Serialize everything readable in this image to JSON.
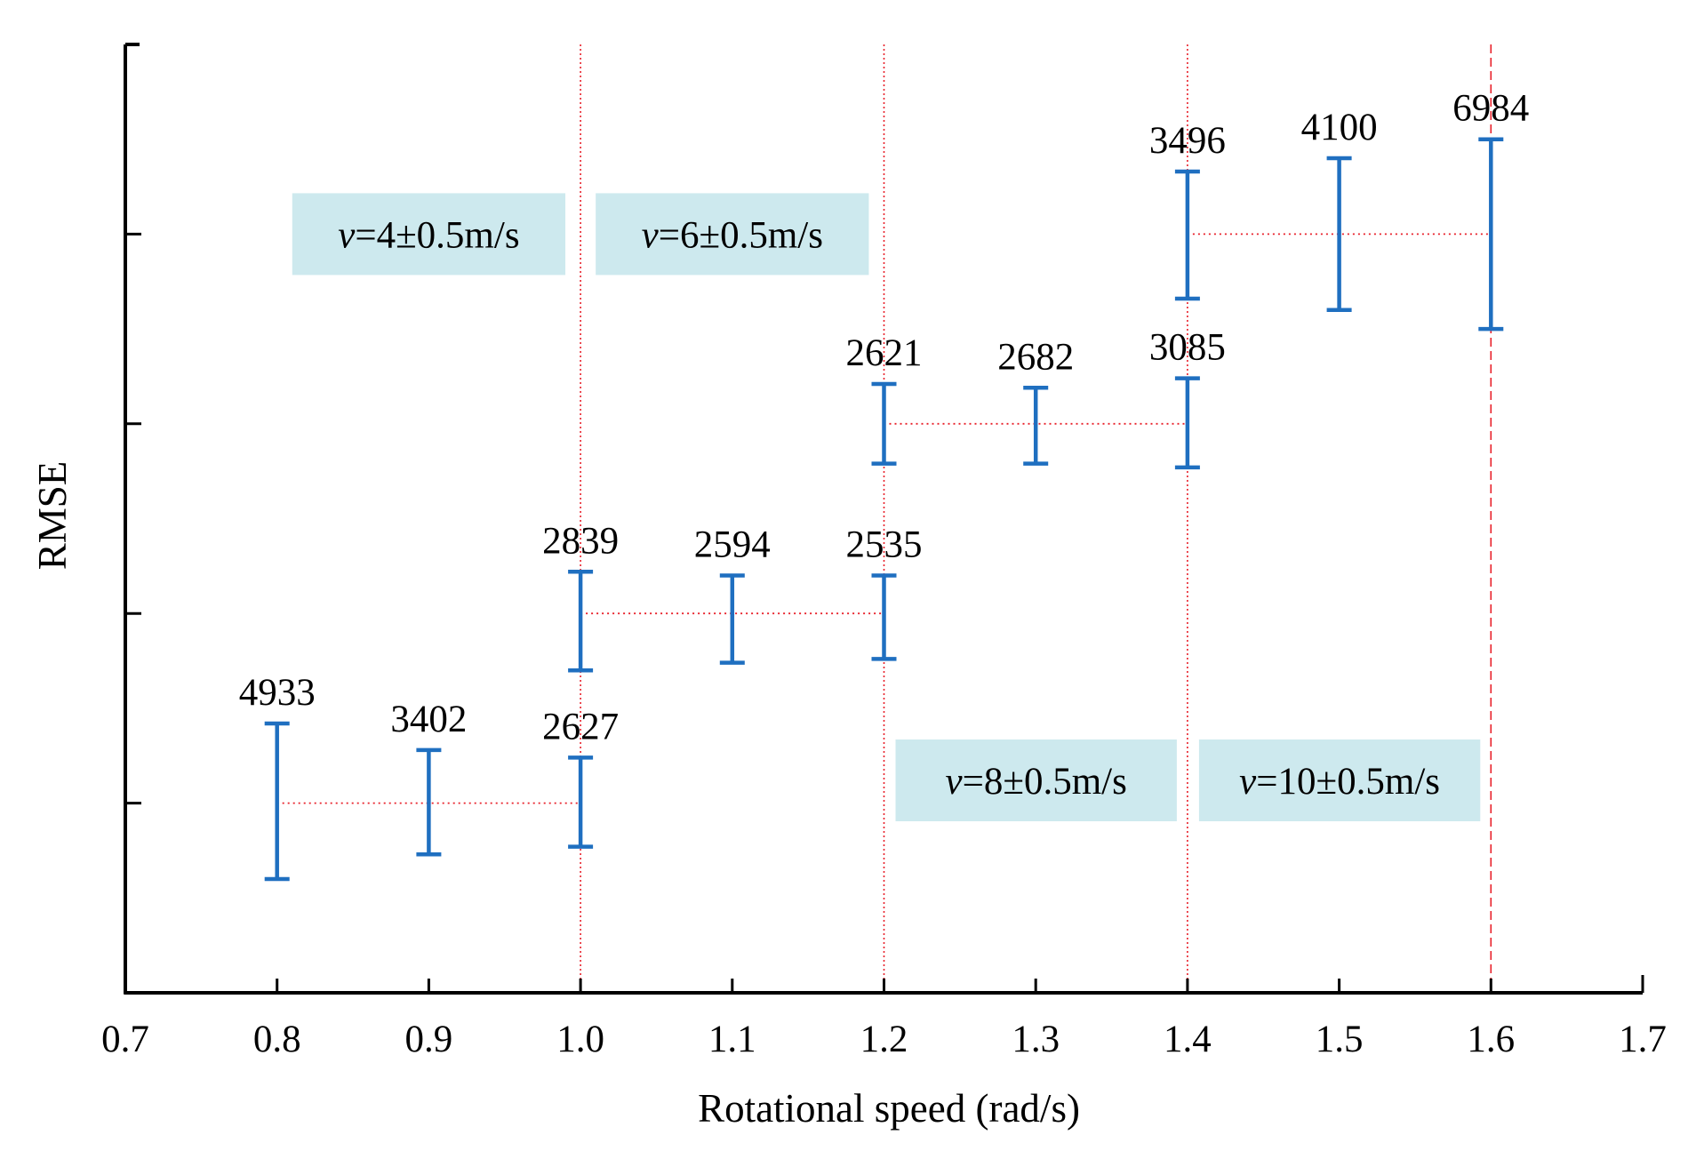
{
  "chart_data": {
    "type": "errorbar",
    "xlabel": "Rotational speed (rad/s)",
    "ylabel": "RMSE",
    "xlim": [
      0.7,
      1.7
    ],
    "x_ticks": [
      "0.7",
      "0.8",
      "0.9",
      "1.0",
      "1.1",
      "1.2",
      "1.3",
      "1.4",
      "1.5",
      "1.6",
      "1.7"
    ],
    "ylim": [
      0,
      5
    ],
    "y_ticks": [
      1,
      2,
      3,
      4
    ],
    "y_tick_labels_shown": false,
    "vertical_reference_lines": [
      1.0,
      1.2,
      1.4,
      1.6
    ],
    "series": [
      {
        "name": "v=4±0.5m/s",
        "y_level": 1,
        "points": [
          {
            "x": 0.8,
            "low": 0.6,
            "high": 1.42,
            "label": "4933"
          },
          {
            "x": 0.9,
            "low": 0.73,
            "high": 1.28,
            "label": "3402"
          },
          {
            "x": 1.0,
            "low": 0.77,
            "high": 1.24,
            "label": "2627"
          }
        ]
      },
      {
        "name": "v=6±0.5m/s",
        "y_level": 2,
        "points": [
          {
            "x": 1.0,
            "low": 1.7,
            "high": 2.22,
            "label": "2839"
          },
          {
            "x": 1.1,
            "low": 1.74,
            "high": 2.2,
            "label": "2594"
          },
          {
            "x": 1.2,
            "low": 1.76,
            "high": 2.2,
            "label": "2535"
          }
        ]
      },
      {
        "name": "v=8±0.5m/s",
        "y_level": 3,
        "points": [
          {
            "x": 1.2,
            "low": 2.79,
            "high": 3.21,
            "label": "2621"
          },
          {
            "x": 1.3,
            "low": 2.79,
            "high": 3.19,
            "label": "2682"
          },
          {
            "x": 1.4,
            "low": 2.77,
            "high": 3.24,
            "label": "3085"
          }
        ]
      },
      {
        "name": "v=10±0.5m/s",
        "y_level": 4,
        "points": [
          {
            "x": 1.4,
            "low": 3.66,
            "high": 4.33,
            "label": "3496"
          },
          {
            "x": 1.5,
            "low": 3.6,
            "high": 4.4,
            "label": "4100"
          },
          {
            "x": 1.6,
            "low": 3.5,
            "high": 4.5,
            "label": "6984"
          }
        ]
      }
    ],
    "band_labels": [
      {
        "text": "v=4±0.5m/s",
        "series": 0
      },
      {
        "text": "v=6±0.5m/s",
        "series": 1
      },
      {
        "text": "v=8±0.5m/s",
        "series": 2
      },
      {
        "text": "v=10±0.5m/s",
        "series": 3
      }
    ],
    "colors": {
      "errorbar": "#1f6fc0",
      "reference_line": "#e8202a",
      "connector": "#e8202a",
      "label_box": "#cde9ee"
    }
  }
}
